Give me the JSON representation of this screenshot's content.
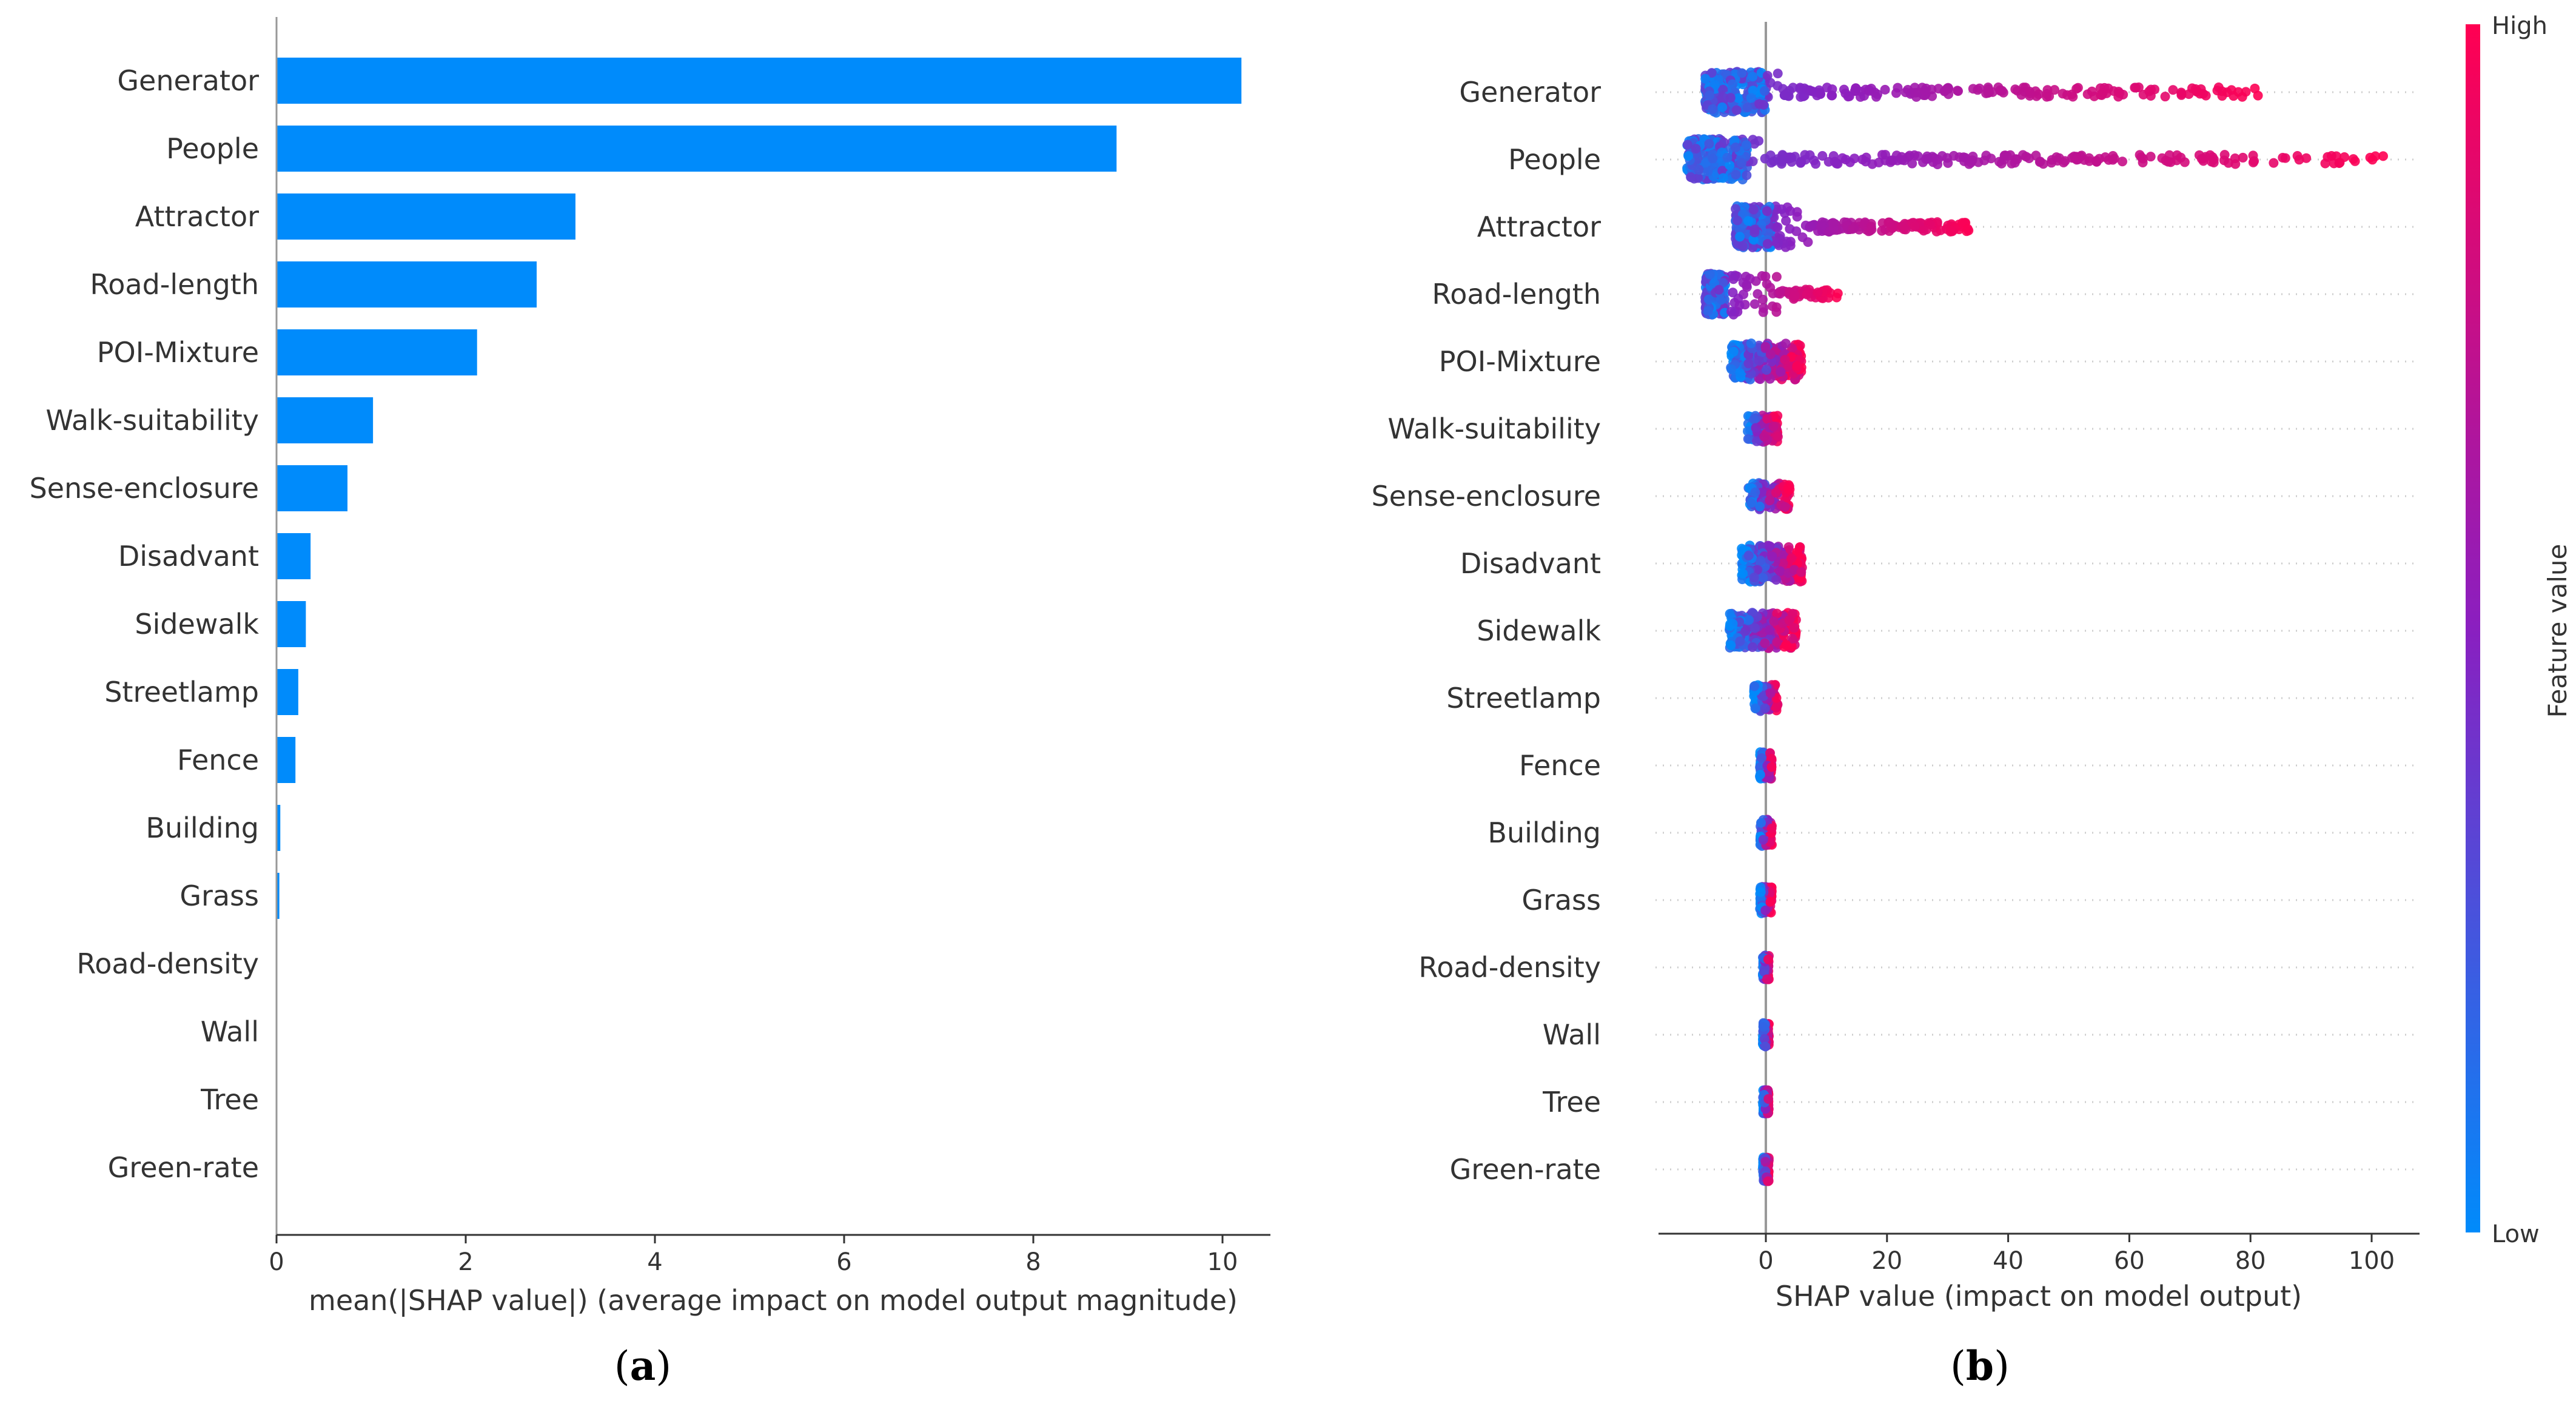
{
  "colors": {
    "bar": "#008BFB",
    "low": "#008BFB",
    "high": "#FF0052",
    "axis": "#333333",
    "zero_line": "#999999",
    "grid": "#cccccc"
  },
  "panels": {
    "a": "a",
    "b": "b"
  },
  "chart_data": [
    {
      "type": "bar",
      "orientation": "horizontal",
      "categories": [
        "Generator",
        "People",
        "Attractor",
        "Road-length",
        "POI-Mixture",
        "Walk-suitability",
        "Sense-enclosure",
        "Disadvant",
        "Sidewalk",
        "Streetlamp",
        "Fence",
        "Building",
        "Grass",
        "Road-density",
        "Wall",
        "Tree",
        "Green-rate"
      ],
      "values": [
        10.2,
        8.88,
        3.16,
        2.75,
        2.12,
        1.02,
        0.75,
        0.36,
        0.31,
        0.23,
        0.2,
        0.04,
        0.03,
        0,
        0,
        0,
        0
      ],
      "xlabel": "mean(|SHAP value|) (average impact on model output magnitude)",
      "xticks": [
        0,
        2,
        4,
        6,
        8,
        10
      ],
      "xtick_labels": [
        "0",
        "2",
        "4",
        "6",
        "8",
        "10"
      ],
      "xlim": [
        0,
        10.7
      ],
      "grid": false
    },
    {
      "type": "scatter",
      "subtype": "beeswarm",
      "categories": [
        "Generator",
        "People",
        "Attractor",
        "Road-length",
        "POI-Mixture",
        "Walk-suitability",
        "Sense-enclosure",
        "Disadvant",
        "Sidewalk",
        "Streetlamp",
        "Fence",
        "Building",
        "Grass",
        "Road-density",
        "Wall",
        "Tree",
        "Green-rate"
      ],
      "value_range_low": [
        -10,
        -13,
        -5,
        -10,
        -6,
        -3,
        -3,
        -4,
        -6,
        -2,
        -1,
        -1,
        -1,
        -0.5,
        -0.5,
        -0.5,
        -0.5
      ],
      "value_range_high": [
        82,
        102,
        34,
        12,
        6,
        2,
        4,
        6,
        5,
        2,
        1,
        1,
        1,
        0.5,
        0.5,
        0.5,
        0.5
      ],
      "xlabel": "SHAP value (impact on model output)",
      "xticks": [
        0,
        20,
        40,
        60,
        80,
        100
      ],
      "xtick_labels": [
        "0",
        "20",
        "40",
        "60",
        "80",
        "100"
      ],
      "xlim": [
        -18,
        108
      ],
      "colorbar": {
        "label": "Feature value",
        "high": "High",
        "low": "Low"
      },
      "grid": false
    }
  ]
}
